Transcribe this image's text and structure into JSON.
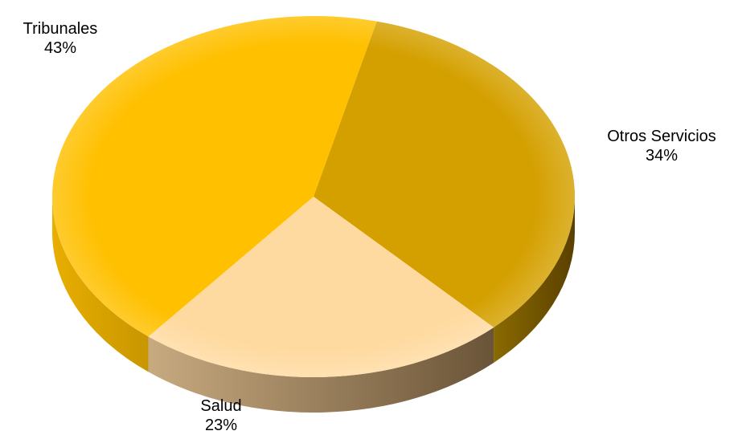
{
  "chart_data": {
    "type": "pie",
    "slices": [
      {
        "label": "Tribunales",
        "value": 43,
        "display": "43%",
        "color": "#FFC000",
        "side_color": "#D9A300"
      },
      {
        "label": "Otros Servicios",
        "value": 34,
        "display": "34%",
        "color": "#D4A000",
        "side_color": "#7A5800"
      },
      {
        "label": "Salud",
        "value": 23,
        "display": "23%",
        "color": "#FFDAA0",
        "side_color": "#8A7050"
      }
    ]
  }
}
